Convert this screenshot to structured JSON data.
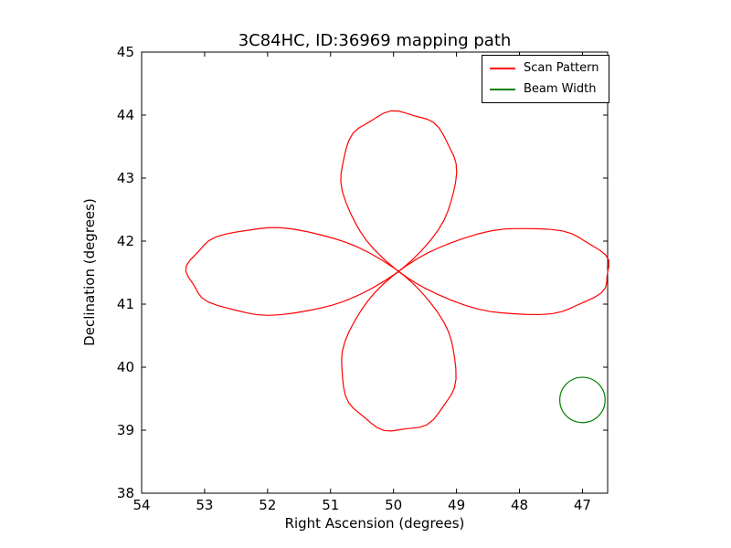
{
  "chart_data": {
    "type": "line",
    "title": "3C84HC, ID:36969 mapping path",
    "xlabel": "Right Ascension (degrees)",
    "ylabel": "Declination (degrees)",
    "grid": false,
    "legend_position": "upper right",
    "x_axis": {
      "label": "Right Ascension (degrees)",
      "min": 46.6,
      "max": 54.0,
      "inverted": true,
      "ticks": [
        54,
        53,
        52,
        51,
        50,
        49,
        48,
        47
      ]
    },
    "y_axis": {
      "label": "Declination (degrees)",
      "min": 38.0,
      "max": 45.0,
      "ticks": [
        38,
        39,
        40,
        41,
        42,
        43,
        44,
        45
      ]
    },
    "series": [
      {
        "name": "Scan Pattern",
        "color": "#ff0000",
        "shape": "rose",
        "petals": 4,
        "center": {
          "ra": 49.92,
          "dec": 41.52
        },
        "amplitude": {
          "ra": 3.35,
          "dec": 2.53
        },
        "jitter": 0.01,
        "extent": {
          "ra_min": 46.6,
          "ra_max": 53.3,
          "dec_min": 39.0,
          "dec_max": 44.05
        }
      },
      {
        "name": "Beam Width",
        "color": "#008000",
        "shape": "circle",
        "center": {
          "ra": 47.0,
          "dec": 39.48
        },
        "radius_deg": 0.36
      }
    ]
  },
  "legend": {
    "items": [
      {
        "label": "Scan Pattern",
        "color": "#ff0000"
      },
      {
        "label": "Beam Width",
        "color": "#008000"
      }
    ]
  }
}
